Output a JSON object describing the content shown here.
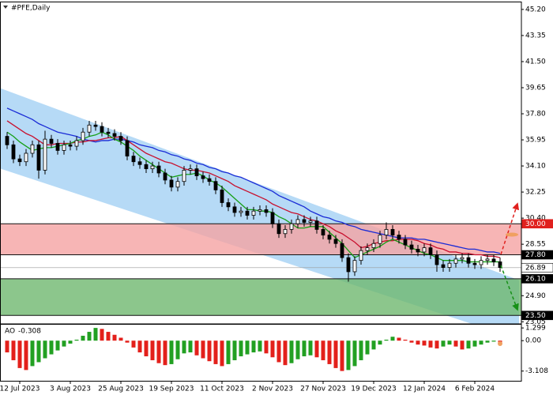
{
  "chart_data": [
    {
      "type": "candlestick",
      "title": "#PFE,Daily",
      "categories": [
        null,
        null,
        "12 Jul 2023",
        null,
        null,
        null,
        null,
        null,
        null,
        null,
        "3 Aug 2023",
        null,
        null,
        null,
        null,
        null,
        null,
        null,
        "25 Aug 2023",
        null,
        null,
        null,
        null,
        null,
        null,
        null,
        "19 Sep 2023",
        null,
        null,
        null,
        null,
        null,
        null,
        null,
        "11 Oct 2023",
        null,
        null,
        null,
        null,
        null,
        null,
        null,
        "2 Nov 2023",
        null,
        null,
        null,
        null,
        null,
        null,
        null,
        "27 Nov 2023",
        null,
        null,
        null,
        null,
        null,
        null,
        null,
        "19 Dec 2023",
        null,
        null,
        null,
        null,
        null,
        null,
        null,
        "12 Jan 2024",
        null,
        null,
        null,
        null,
        null,
        null,
        null,
        "6 Feb 2024",
        null,
        null,
        null,
        null
      ],
      "open": [
        36.2,
        35.6,
        34.6,
        34.4,
        35.0,
        35.6,
        33.8,
        36.0,
        35.7,
        35.2,
        35.6,
        35.5,
        35.9,
        36.5,
        37.0,
        36.9,
        36.5,
        36.4,
        36.2,
        35.9,
        34.8,
        34.4,
        34.2,
        33.9,
        34.1,
        33.6,
        33.1,
        32.6,
        33.0,
        33.8,
        33.9,
        33.4,
        33.2,
        33.0,
        32.4,
        31.5,
        31.2,
        30.8,
        30.9,
        30.6,
        30.9,
        31.0,
        30.8,
        30.0,
        29.3,
        29.6,
        30.0,
        30.3,
        30.1,
        30.2,
        29.6,
        29.2,
        28.9,
        28.6,
        27.6,
        26.6,
        27.4,
        28.1,
        28.3,
        28.6,
        29.2,
        29.6,
        29.2,
        28.9,
        28.5,
        28.2,
        28.0,
        28.3,
        27.8,
        27.1,
        26.9,
        27.2,
        27.5,
        27.6,
        27.2,
        27.1,
        27.4,
        27.5,
        27.3
      ],
      "high": [
        36.5,
        35.9,
        34.9,
        35.3,
        35.9,
        35.9,
        36.6,
        36.3,
        36.0,
        35.9,
        35.9,
        36.2,
        36.8,
        37.3,
        37.3,
        37.2,
        36.8,
        36.7,
        36.5,
        36.2,
        35.1,
        34.7,
        34.5,
        34.4,
        34.4,
        33.9,
        33.4,
        33.3,
        34.1,
        34.2,
        34.2,
        33.7,
        33.5,
        33.3,
        32.7,
        31.8,
        31.5,
        31.2,
        31.2,
        31.2,
        31.3,
        31.3,
        31.1,
        30.3,
        29.9,
        30.3,
        30.6,
        30.6,
        30.5,
        30.5,
        29.9,
        29.5,
        29.2,
        28.9,
        27.9,
        27.7,
        28.4,
        28.6,
        28.9,
        29.5,
        30.1,
        29.9,
        29.5,
        29.2,
        28.8,
        28.5,
        28.6,
        28.6,
        28.1,
        27.4,
        27.5,
        27.8,
        27.9,
        27.9,
        27.5,
        27.7,
        27.8,
        27.8,
        27.6
      ],
      "low": [
        35.3,
        34.3,
        34.1,
        34.1,
        34.7,
        33.2,
        33.5,
        35.4,
        34.9,
        34.9,
        35.2,
        35.2,
        35.6,
        36.2,
        36.6,
        36.2,
        36.1,
        35.9,
        35.6,
        34.5,
        34.1,
        33.9,
        33.6,
        33.6,
        33.3,
        32.8,
        32.3,
        32.3,
        32.7,
        33.5,
        33.1,
        32.9,
        32.7,
        32.1,
        31.2,
        30.9,
        30.5,
        30.5,
        30.3,
        30.3,
        30.6,
        30.5,
        29.7,
        29.0,
        29.0,
        29.3,
        29.7,
        29.8,
        29.8,
        29.3,
        28.9,
        28.6,
        28.3,
        27.3,
        25.9,
        26.3,
        27.1,
        27.8,
        28.0,
        28.3,
        28.9,
        28.9,
        28.6,
        28.2,
        27.9,
        27.7,
        27.7,
        27.5,
        26.6,
        26.6,
        26.6,
        26.9,
        27.2,
        26.9,
        26.8,
        26.8,
        27.1,
        27.0,
        26.6
      ],
      "close": [
        35.6,
        34.6,
        34.4,
        35.0,
        35.6,
        33.8,
        36.0,
        35.7,
        35.2,
        35.6,
        35.5,
        35.9,
        36.5,
        37.0,
        36.9,
        36.5,
        36.4,
        36.2,
        35.9,
        34.8,
        34.4,
        34.2,
        33.9,
        34.1,
        33.6,
        33.1,
        32.6,
        33.0,
        33.8,
        33.9,
        33.4,
        33.2,
        33.0,
        32.4,
        31.5,
        31.2,
        30.8,
        30.9,
        30.6,
        30.9,
        31.0,
        30.8,
        30.0,
        29.3,
        29.6,
        30.0,
        30.3,
        30.1,
        30.2,
        29.6,
        29.2,
        28.9,
        28.6,
        27.6,
        26.6,
        27.4,
        28.1,
        28.3,
        28.6,
        29.2,
        29.6,
        29.2,
        28.9,
        28.5,
        28.2,
        28.0,
        28.3,
        27.8,
        27.1,
        26.9,
        27.2,
        27.5,
        27.6,
        27.2,
        27.1,
        27.4,
        27.5,
        27.3,
        26.9
      ],
      "lines": [
        {
          "color": "#1a2bd6",
          "values": [
            38.2,
            38.0,
            37.8,
            37.6,
            37.4,
            37.1,
            36.9,
            36.7,
            36.5,
            36.4,
            36.3,
            36.2,
            36.0,
            35.9,
            35.8,
            35.9,
            35.9,
            36.0,
            36.0,
            35.9,
            35.8,
            35.6,
            35.5,
            35.4,
            35.2,
            35.1,
            34.9,
            34.8,
            34.6,
            34.5,
            34.3,
            34.2,
            34.0,
            33.9,
            33.7,
            33.6,
            33.4,
            33.3,
            33.1,
            32.9,
            32.7,
            32.5,
            32.3,
            32.0,
            31.8,
            31.6,
            31.4,
            31.2,
            30.9,
            30.7,
            30.5,
            30.4,
            30.2,
            30.1,
            29.9,
            29.8,
            29.6,
            29.5,
            29.4,
            29.3,
            29.2,
            29.1,
            29.0,
            29.0,
            29.0,
            28.9,
            28.9,
            28.8,
            28.7,
            28.6,
            28.5,
            28.4,
            28.3,
            28.2,
            28.2,
            28.1,
            28.0,
            28.0,
            27.9
          ]
        },
        {
          "color": "#c8102e",
          "values": [
            37.3,
            37.0,
            36.7,
            36.4,
            36.2,
            35.9,
            35.6,
            35.6,
            35.7,
            35.7,
            35.7,
            35.8,
            35.8,
            35.9,
            35.9,
            36.0,
            36.1,
            36.1,
            36.2,
            35.9,
            35.6,
            35.3,
            35.0,
            34.8,
            34.6,
            34.4,
            34.3,
            34.1,
            33.9,
            33.8,
            33.8,
            33.7,
            33.6,
            33.4,
            33.2,
            33.0,
            32.7,
            32.5,
            32.3,
            32.1,
            31.9,
            31.7,
            31.4,
            31.2,
            31.0,
            30.8,
            30.7,
            30.5,
            30.3,
            30.2,
            30.0,
            29.8,
            29.5,
            29.3,
            29.0,
            28.7,
            28.3,
            28.4,
            28.6,
            28.7,
            28.8,
            28.8,
            28.9,
            28.9,
            28.9,
            28.8,
            28.6,
            28.5,
            28.3,
            28.2,
            28.0,
            28.0,
            27.9,
            27.9,
            27.8,
            27.8,
            27.7,
            27.7,
            27.6
          ]
        },
        {
          "color": "#16a016",
          "values": [
            36.5,
            36.2,
            35.8,
            35.5,
            35.2,
            35.3,
            35.4,
            35.4,
            35.5,
            35.6,
            35.7,
            35.9,
            36.0,
            36.2,
            36.3,
            36.5,
            36.3,
            36.0,
            35.8,
            35.5,
            35.2,
            34.8,
            34.5,
            34.2,
            33.9,
            33.6,
            33.3,
            33.4,
            33.5,
            33.5,
            33.6,
            33.4,
            33.1,
            32.9,
            32.6,
            32.2,
            31.8,
            31.4,
            31.0,
            31.0,
            30.9,
            30.9,
            30.8,
            30.5,
            30.3,
            30.0,
            29.7,
            29.7,
            29.8,
            29.8,
            29.8,
            29.4,
            29.0,
            28.6,
            28.1,
            27.6,
            27.8,
            28.0,
            28.2,
            28.4,
            28.7,
            28.9,
            28.7,
            28.5,
            28.3,
            28.1,
            27.9,
            27.8,
            27.6,
            27.4,
            27.4,
            27.4,
            27.4,
            27.3,
            27.3,
            27.3,
            27.3,
            27.3,
            27.3
          ]
        }
      ],
      "channel": {
        "color": "#a9d3f5",
        "x": [
          -1,
          81
        ],
        "upper": [
          39.6,
          26.0
        ],
        "lower": [
          33.9,
          21.8
        ]
      },
      "zones": [
        {
          "from": 30,
          "to": 27.8,
          "color": "#f5a3a3"
        },
        {
          "from": 26.1,
          "to": 23.5,
          "color": "#6fb86f"
        }
      ],
      "levels": [
        {
          "value": 30,
          "label": "30.00",
          "color": "#e0201e"
        },
        {
          "value": 27.8,
          "label": "27.80",
          "color": "#000000"
        },
        {
          "value": 26.89,
          "label": "26.89",
          "color": "#ffffff"
        },
        {
          "value": 26.1,
          "label": "26.10",
          "color": "#000000"
        },
        {
          "value": 23.5,
          "label": "23.50",
          "color": "#000000"
        }
      ],
      "ylim": [
        22.9,
        45.7
      ],
      "yticks": [
        {
          "value": 45.2,
          "label": "45.20"
        },
        43.35,
        {
          "value": 41.5,
          "label": "41.50"
        },
        39.65,
        {
          "value": 37.8,
          "label": "37.80"
        },
        35.95,
        {
          "value": 34.1,
          "label": "34.10"
        },
        32.25,
        {
          "value": 30.4,
          "label": "30.40"
        },
        28.55,
        {
          "value": 24.9,
          "label": "24.90"
        },
        23.05
      ]
    },
    {
      "type": "bar",
      "title": "AO",
      "values": [
        -1.2,
        -2.0,
        -2.8,
        -3.0,
        -2.6,
        -2.2,
        -1.8,
        -1.4,
        -1.0,
        -0.6,
        -0.3,
        0.1,
        0.5,
        0.9,
        1.3,
        1.2,
        0.9,
        0.6,
        0.3,
        -0.2,
        -0.7,
        -1.2,
        -1.6,
        -2.0,
        -2.3,
        -2.5,
        -2.4,
        -1.9,
        -1.3,
        -1.2,
        -1.5,
        -1.8,
        -2.1,
        -2.4,
        -2.6,
        -2.4,
        -2.0,
        -1.6,
        -1.4,
        -1.2,
        -1.1,
        -1.3,
        -1.7,
        -2.2,
        -2.5,
        -2.3,
        -1.9,
        -1.6,
        -1.5,
        -1.7,
        -2.0,
        -2.4,
        -2.8,
        -3.1,
        -3.0,
        -2.6,
        -2.0,
        -1.4,
        -0.9,
        -0.4,
        0.1,
        0.4,
        0.3,
        0.1,
        -0.2,
        -0.4,
        -0.5,
        -0.7,
        -0.8,
        -0.6,
        -0.4,
        -0.6,
        -0.9,
        -0.8,
        -0.6,
        -0.4,
        -0.2,
        -0.1,
        -0.308
      ],
      "up_color": "#22a022",
      "down_color": "#e3201b",
      "ylim": [
        -4.1,
        1.55
      ],
      "yticks": [
        1.299,
        {
          "value": 0,
          "label": "0.00"
        },
        -3.108
      ]
    }
  ]
}
